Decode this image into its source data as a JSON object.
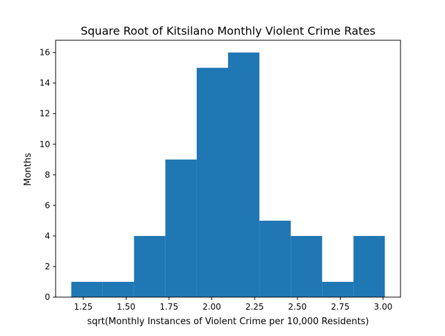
{
  "chart_data": {
    "type": "bar",
    "title": "Square Root of Kitsilano Monthly Violent Crime Rates",
    "xlabel": "sqrt(Monthly Instances of Violent Crime per 10,000 Residents)",
    "ylabel": "Months",
    "bin_edges": [
      1.18,
      1.363,
      1.546,
      1.729,
      1.912,
      2.095,
      2.278,
      2.461,
      2.644,
      2.827,
      3.01
    ],
    "values": [
      1,
      1,
      4,
      9,
      15,
      16,
      5,
      4,
      1,
      4
    ],
    "xlim": [
      1.0885,
      3.1015
    ],
    "ylim": [
      0,
      16.8
    ],
    "xticks": [
      1.25,
      1.5,
      1.75,
      2.0,
      2.25,
      2.5,
      2.75,
      3.0
    ],
    "xtick_labels": [
      "1.25",
      "1.50",
      "1.75",
      "2.00",
      "2.25",
      "2.50",
      "2.75",
      "3.00"
    ],
    "yticks": [
      0,
      2,
      4,
      6,
      8,
      10,
      12,
      14,
      16
    ],
    "ytick_labels": [
      "0",
      "2",
      "4",
      "6",
      "8",
      "10",
      "12",
      "14",
      "16"
    ],
    "bar_color": "#1f77b4",
    "grid": false,
    "legend": "none"
  }
}
